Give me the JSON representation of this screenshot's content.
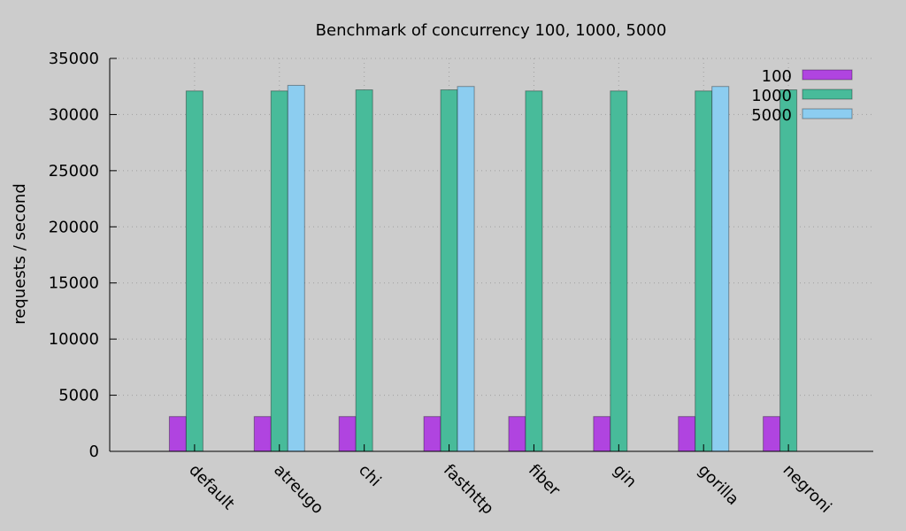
{
  "chart_data": {
    "type": "bar",
    "title": "Benchmark of concurrency 100, 1000, 5000",
    "xlabel": "",
    "ylabel": "requests / second",
    "ylim": [
      0,
      35000
    ],
    "yticks": [
      0,
      5000,
      10000,
      15000,
      20000,
      25000,
      30000,
      35000
    ],
    "grid": true,
    "legend_position": "top-right",
    "categories": [
      "default",
      "atreugo",
      "chi",
      "fasthttp",
      "fiber",
      "gin",
      "gorilla",
      "negroni"
    ],
    "series": [
      {
        "name": "100",
        "color": "#b044e0",
        "values": [
          3100,
          3100,
          3100,
          3100,
          3100,
          3100,
          3100,
          3100
        ]
      },
      {
        "name": "1000",
        "color": "#48bb9a",
        "values": [
          32100,
          32100,
          32200,
          32200,
          32100,
          32100,
          32100,
          32200
        ]
      },
      {
        "name": "5000",
        "color": "#8ccdf0",
        "values": [
          0,
          32600,
          0,
          32500,
          0,
          0,
          32500,
          0
        ]
      }
    ]
  }
}
